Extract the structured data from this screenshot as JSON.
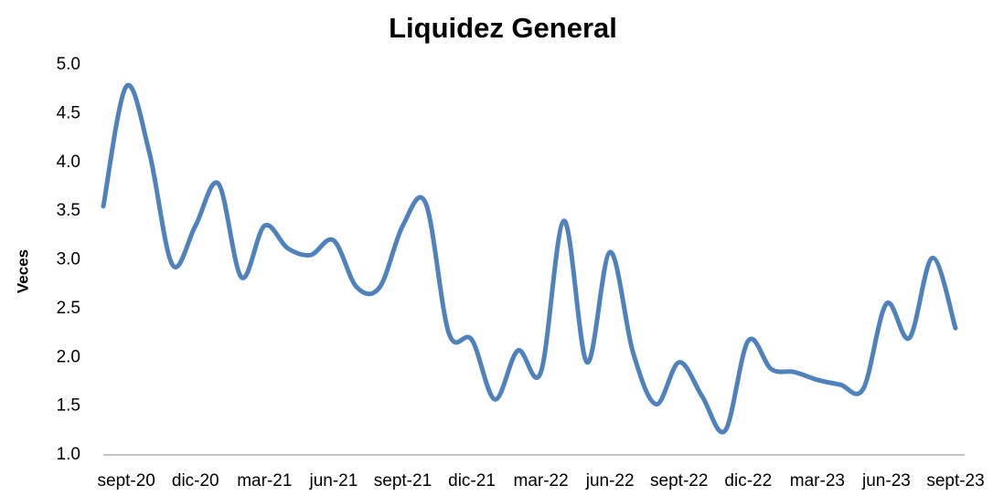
{
  "chart_data": {
    "type": "line",
    "title": "Liquidez General",
    "y_label": "Veces",
    "categories": [
      null,
      "sept-20",
      null,
      null,
      "dic-20",
      null,
      null,
      "mar-21",
      null,
      null,
      "jun-21",
      null,
      null,
      "sept-21",
      null,
      null,
      "dic-21",
      null,
      null,
      "mar-22",
      null,
      null,
      "jun-22",
      null,
      null,
      "sept-22",
      null,
      null,
      "dic-22",
      null,
      null,
      "mar-23",
      null,
      null,
      "jun-23",
      null,
      null,
      "sept-23"
    ],
    "series": [
      {
        "name": "Liquidez General",
        "color": "#4f81bd",
        "values": [
          3.55,
          4.78,
          4.1,
          2.95,
          3.35,
          3.78,
          2.82,
          3.35,
          3.12,
          3.05,
          3.2,
          2.72,
          2.72,
          3.35,
          3.58,
          2.25,
          2.18,
          1.57,
          2.07,
          1.85,
          3.4,
          1.95,
          3.08,
          2.05,
          1.52,
          1.95,
          1.6,
          1.25,
          2.17,
          1.88,
          1.85,
          1.77,
          1.72,
          1.68,
          2.55,
          2.2,
          3.02,
          2.3
        ]
      }
    ],
    "ylim": [
      1.0,
      5.0
    ],
    "yticks": [
      {
        "value": 1,
        "label": "1.0"
      },
      {
        "value": 1.5,
        "label": "1.5"
      },
      {
        "value": 2,
        "label": "2.0"
      },
      {
        "value": 2.5,
        "label": "2.5"
      },
      {
        "value": 3,
        "label": "3.0"
      },
      {
        "value": 3.5,
        "label": "3.5"
      },
      {
        "value": 4,
        "label": "4.0"
      },
      {
        "value": 4.5,
        "label": "4.5"
      },
      {
        "value": 5,
        "label": "5.0"
      }
    ],
    "grid": false
  }
}
